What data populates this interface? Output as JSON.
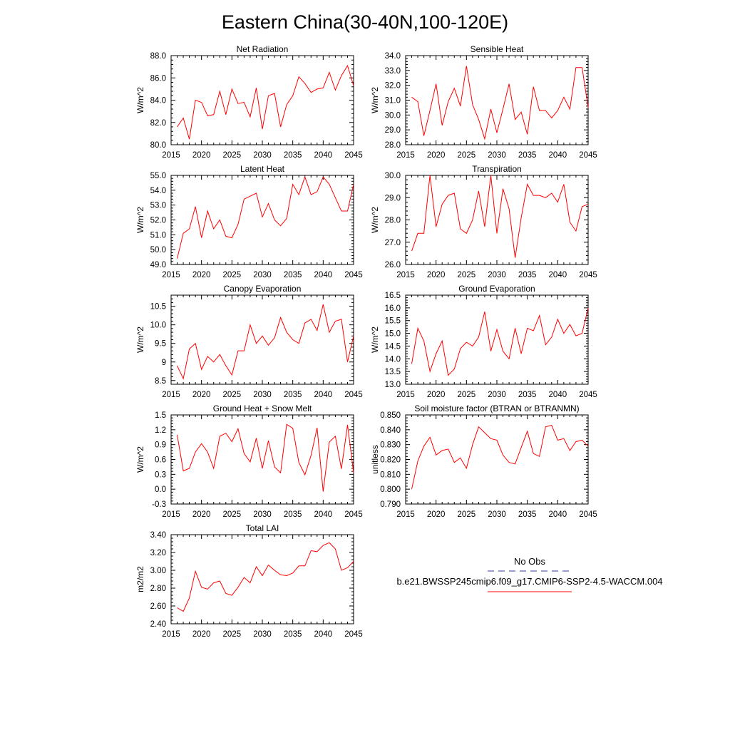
{
  "title": "Eastern China(30-40N,100-120E)",
  "legend": {
    "obs_label": "No Obs",
    "obs_color": "#3a3a9a",
    "model_label": "b.e21.BWSSP245cmip6.f09_g17.CMIP6-SSP2-4.5-WACCM.004",
    "model_color": "#ff0000"
  },
  "chart_data": [
    {
      "type": "line",
      "title": "Net Radiation",
      "ylabel": "W/m^2",
      "xlim": [
        2015,
        2045
      ],
      "ylim": [
        80.0,
        88.0
      ],
      "xticks": [
        2015,
        2020,
        2025,
        2030,
        2035,
        2040,
        2045
      ],
      "yticks": [
        80.0,
        82.0,
        84.0,
        86.0,
        88.0
      ],
      "ytick_labels": [
        "80.0",
        "82.0",
        "84.0",
        "86.0",
        "88.0"
      ],
      "x": [
        2016,
        2017,
        2018,
        2019,
        2020,
        2021,
        2022,
        2023,
        2024,
        2025,
        2026,
        2027,
        2028,
        2029,
        2030,
        2031,
        2032,
        2033,
        2034,
        2035,
        2036,
        2037,
        2038,
        2039,
        2040,
        2041,
        2042,
        2043,
        2044,
        2045
      ],
      "series": [
        {
          "values": [
            81.6,
            82.4,
            80.5,
            84.0,
            83.8,
            82.6,
            82.7,
            84.8,
            82.7,
            85.0,
            83.7,
            83.8,
            82.5,
            85.1,
            81.4,
            84.4,
            84.6,
            81.6,
            83.6,
            84.4,
            86.1,
            85.5,
            84.7,
            85.0,
            85.1,
            86.5,
            84.9,
            86.2,
            87.1,
            85.3
          ]
        }
      ]
    },
    {
      "type": "line",
      "title": "Sensible Heat",
      "ylabel": "W/m^2",
      "xlim": [
        2015,
        2045
      ],
      "ylim": [
        28.0,
        34.0
      ],
      "xticks": [
        2015,
        2020,
        2025,
        2030,
        2035,
        2040,
        2045
      ],
      "yticks": [
        28.0,
        29.0,
        30.0,
        31.0,
        32.0,
        33.0,
        34.0
      ],
      "ytick_labels": [
        "28.0",
        "29.0",
        "30.0",
        "31.0",
        "32.0",
        "33.0",
        "34.0"
      ],
      "x": [
        2016,
        2017,
        2018,
        2019,
        2020,
        2021,
        2022,
        2023,
        2024,
        2025,
        2026,
        2027,
        2028,
        2029,
        2030,
        2031,
        2032,
        2033,
        2034,
        2035,
        2036,
        2037,
        2038,
        2039,
        2040,
        2041,
        2042,
        2043,
        2044,
        2045
      ],
      "series": [
        {
          "values": [
            31.2,
            30.9,
            28.6,
            30.3,
            32.1,
            29.3,
            30.9,
            31.8,
            30.6,
            33.3,
            30.7,
            29.7,
            28.4,
            30.4,
            28.8,
            30.4,
            32.1,
            29.7,
            30.2,
            28.7,
            31.9,
            30.3,
            30.3,
            29.8,
            30.3,
            31.2,
            30.4,
            33.2,
            33.2,
            30.5
          ]
        }
      ]
    },
    {
      "type": "line",
      "title": "Latent Heat",
      "ylabel": "W/m^2",
      "xlim": [
        2015,
        2045
      ],
      "ylim": [
        49.0,
        55.0
      ],
      "xticks": [
        2015,
        2020,
        2025,
        2030,
        2035,
        2040,
        2045
      ],
      "yticks": [
        49.0,
        50.0,
        51.0,
        52.0,
        53.0,
        54.0,
        55.0
      ],
      "ytick_labels": [
        "49.0",
        "50.0",
        "51.0",
        "52.0",
        "53.0",
        "54.0",
        "55.0"
      ],
      "x": [
        2016,
        2017,
        2018,
        2019,
        2020,
        2021,
        2022,
        2023,
        2024,
        2025,
        2026,
        2027,
        2028,
        2029,
        2030,
        2031,
        2032,
        2033,
        2034,
        2035,
        2036,
        2037,
        2038,
        2039,
        2040,
        2041,
        2042,
        2043,
        2044,
        2045
      ],
      "series": [
        {
          "values": [
            49.4,
            51.1,
            51.4,
            52.9,
            50.8,
            52.6,
            51.4,
            52.0,
            50.9,
            50.8,
            51.7,
            53.4,
            53.6,
            53.8,
            52.2,
            53.1,
            52.0,
            51.6,
            52.1,
            54.4,
            53.7,
            54.9,
            53.7,
            53.9,
            54.9,
            54.4,
            53.5,
            52.6,
            52.6,
            54.4
          ]
        }
      ]
    },
    {
      "type": "line",
      "title": "Transpiration",
      "ylabel": "W/m^2",
      "xlim": [
        2015,
        2045
      ],
      "ylim": [
        26.0,
        30.0
      ],
      "xticks": [
        2015,
        2020,
        2025,
        2030,
        2035,
        2040,
        2045
      ],
      "yticks": [
        26.0,
        27.0,
        28.0,
        29.0,
        30.0
      ],
      "ytick_labels": [
        "26.0",
        "27.0",
        "28.0",
        "29.0",
        "30.0"
      ],
      "x": [
        2016,
        2017,
        2018,
        2019,
        2020,
        2021,
        2022,
        2023,
        2024,
        2025,
        2026,
        2027,
        2028,
        2029,
        2030,
        2031,
        2032,
        2033,
        2034,
        2035,
        2036,
        2037,
        2038,
        2039,
        2040,
        2041,
        2042,
        2043,
        2044,
        2045
      ],
      "series": [
        {
          "values": [
            26.6,
            27.4,
            27.4,
            30.0,
            27.7,
            28.7,
            29.1,
            29.2,
            27.6,
            27.4,
            28.0,
            29.3,
            27.7,
            30.0,
            27.4,
            29.4,
            28.5,
            26.3,
            28.1,
            29.6,
            29.1,
            29.1,
            29.0,
            29.2,
            28.8,
            29.6,
            27.9,
            27.5,
            28.6,
            28.7
          ]
        }
      ]
    },
    {
      "type": "line",
      "title": "Canopy Evaporation",
      "ylabel": "W/m^2",
      "xlim": [
        2015,
        2045
      ],
      "ylim": [
        8.4,
        10.8
      ],
      "xticks": [
        2015,
        2020,
        2025,
        2030,
        2035,
        2040,
        2045
      ],
      "yticks": [
        8.5,
        9.0,
        9.5,
        10.0,
        10.5
      ],
      "ytick_labels": [
        "8.5",
        "9",
        "9.5",
        "10.0",
        "10.5"
      ],
      "x": [
        2016,
        2017,
        2018,
        2019,
        2020,
        2021,
        2022,
        2023,
        2024,
        2025,
        2026,
        2027,
        2028,
        2029,
        2030,
        2031,
        2032,
        2033,
        2034,
        2035,
        2036,
        2037,
        2038,
        2039,
        2040,
        2041,
        2042,
        2043,
        2044,
        2045
      ],
      "series": [
        {
          "values": [
            8.9,
            8.55,
            9.35,
            9.5,
            8.8,
            9.15,
            9.0,
            9.2,
            8.9,
            8.65,
            9.3,
            9.3,
            10.0,
            9.5,
            9.7,
            9.45,
            9.65,
            10.2,
            9.8,
            9.6,
            9.5,
            10.05,
            10.15,
            9.85,
            10.55,
            9.8,
            10.1,
            10.15,
            9.0,
            9.7
          ]
        }
      ]
    },
    {
      "type": "line",
      "title": "Ground Evaporation",
      "ylabel": "W/m^2",
      "xlim": [
        2015,
        2045
      ],
      "ylim": [
        13.0,
        16.5
      ],
      "xticks": [
        2015,
        2020,
        2025,
        2030,
        2035,
        2040,
        2045
      ],
      "yticks": [
        13.0,
        13.5,
        14.0,
        14.5,
        15.0,
        15.5,
        16.0,
        16.5
      ],
      "ytick_labels": [
        "13.0",
        "13.5",
        "14.0",
        "14.5",
        "15.0",
        "15.5",
        "16.0",
        "16.5"
      ],
      "x": [
        2016,
        2017,
        2018,
        2019,
        2020,
        2021,
        2022,
        2023,
        2024,
        2025,
        2026,
        2027,
        2028,
        2029,
        2030,
        2031,
        2032,
        2033,
        2034,
        2035,
        2036,
        2037,
        2038,
        2039,
        2040,
        2041,
        2042,
        2043,
        2044,
        2045
      ],
      "series": [
        {
          "values": [
            13.8,
            15.2,
            14.7,
            13.5,
            14.2,
            14.7,
            13.35,
            13.6,
            14.4,
            14.65,
            14.5,
            14.85,
            15.85,
            14.3,
            15.15,
            14.3,
            14.0,
            15.2,
            14.2,
            15.2,
            15.1,
            15.7,
            14.55,
            14.85,
            15.55,
            15.0,
            15.35,
            14.9,
            15.0,
            16.0
          ]
        }
      ]
    },
    {
      "type": "line",
      "title": "Ground Heat + Snow Melt",
      "ylabel": "W/m^2",
      "xlim": [
        2015,
        2045
      ],
      "ylim": [
        -0.3,
        1.5
      ],
      "xticks": [
        2015,
        2020,
        2025,
        2030,
        2035,
        2040,
        2045
      ],
      "yticks": [
        -0.3,
        0.0,
        0.3,
        0.6,
        0.9,
        1.2,
        1.5
      ],
      "ytick_labels": [
        "-0.3",
        "0.0",
        "0.3",
        "0.6",
        "0.9",
        "1.2",
        "1.5"
      ],
      "x": [
        2016,
        2017,
        2018,
        2019,
        2020,
        2021,
        2022,
        2023,
        2024,
        2025,
        2026,
        2027,
        2028,
        2029,
        2030,
        2031,
        2032,
        2033,
        2034,
        2035,
        2036,
        2037,
        2038,
        2039,
        2040,
        2041,
        2042,
        2043,
        2044,
        2045
      ],
      "series": [
        {
          "values": [
            1.1,
            0.37,
            0.42,
            0.75,
            0.92,
            0.75,
            0.42,
            1.07,
            1.13,
            0.96,
            1.22,
            0.72,
            0.55,
            1.03,
            0.42,
            0.98,
            0.45,
            0.33,
            1.31,
            1.23,
            0.54,
            0.29,
            0.68,
            1.24,
            -0.05,
            0.95,
            1.07,
            0.41,
            1.3,
            0.33
          ]
        }
      ]
    },
    {
      "type": "line",
      "title": "Soil moisture factor (BTRAN or BTRANMN)",
      "ylabel": "unitless",
      "xlim": [
        2015,
        2045
      ],
      "ylim": [
        0.79,
        0.85
      ],
      "xticks": [
        2015,
        2020,
        2025,
        2030,
        2035,
        2040,
        2045
      ],
      "yticks": [
        0.79,
        0.8,
        0.81,
        0.82,
        0.83,
        0.84,
        0.85
      ],
      "ytick_labels": [
        "0.790",
        "0.800",
        "0.810",
        "0.820",
        "0.830",
        "0.840",
        "0.850"
      ],
      "x": [
        2016,
        2017,
        2018,
        2019,
        2020,
        2021,
        2022,
        2023,
        2024,
        2025,
        2026,
        2027,
        2028,
        2029,
        2030,
        2031,
        2032,
        2033,
        2034,
        2035,
        2036,
        2037,
        2038,
        2039,
        2040,
        2041,
        2042,
        2043,
        2044,
        2045
      ],
      "series": [
        {
          "values": [
            0.8,
            0.819,
            0.829,
            0.835,
            0.823,
            0.826,
            0.827,
            0.818,
            0.821,
            0.814,
            0.83,
            0.842,
            0.838,
            0.834,
            0.833,
            0.823,
            0.818,
            0.817,
            0.828,
            0.839,
            0.824,
            0.822,
            0.842,
            0.843,
            0.833,
            0.834,
            0.826,
            0.832,
            0.833,
            0.829
          ]
        }
      ]
    },
    {
      "type": "line",
      "title": "Total LAI",
      "ylabel": "m2/m2",
      "xlim": [
        2015,
        2045
      ],
      "ylim": [
        2.4,
        3.4
      ],
      "xticks": [
        2015,
        2020,
        2025,
        2030,
        2035,
        2040,
        2045
      ],
      "yticks": [
        2.4,
        2.6,
        2.8,
        3.0,
        3.2,
        3.4
      ],
      "ytick_labels": [
        "2.40",
        "2.60",
        "2.80",
        "3.00",
        "3.20",
        "3.40"
      ],
      "x": [
        2016,
        2017,
        2018,
        2019,
        2020,
        2021,
        2022,
        2023,
        2024,
        2025,
        2026,
        2027,
        2028,
        2029,
        2030,
        2031,
        2032,
        2033,
        2034,
        2035,
        2036,
        2037,
        2038,
        2039,
        2040,
        2041,
        2042,
        2043,
        2044,
        2045
      ],
      "series": [
        {
          "values": [
            2.58,
            2.54,
            2.69,
            2.99,
            2.81,
            2.79,
            2.86,
            2.88,
            2.74,
            2.72,
            2.81,
            2.92,
            2.86,
            3.04,
            2.94,
            3.06,
            3.0,
            2.95,
            2.94,
            2.97,
            3.05,
            3.05,
            3.22,
            3.21,
            3.28,
            3.31,
            3.24,
            3.0,
            3.03,
            3.1
          ]
        }
      ]
    }
  ]
}
